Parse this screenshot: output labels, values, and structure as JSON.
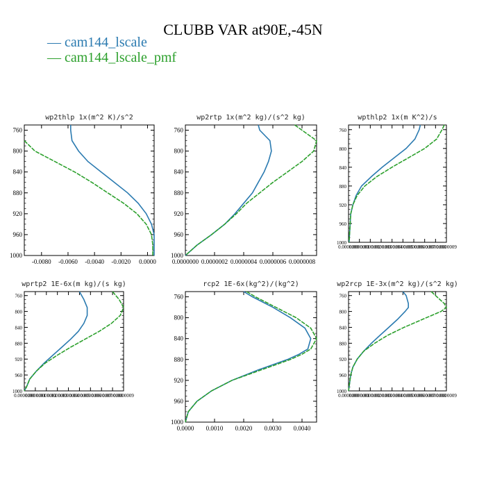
{
  "title": "CLUBB VAR at90E,-45N",
  "legend": [
    {
      "label": "cam144_lscale",
      "color": "#2a7ab0"
    },
    {
      "label": "cam144_lscale_pmf",
      "color": "#2ca02c"
    }
  ],
  "chart_data": [
    {
      "type": "line",
      "title": "wp2thlp  1x(m^2 K)/s^2",
      "xlim": [
        -0.0093,
        0.0005
      ],
      "ylim": [
        1000,
        750
      ],
      "yticks": [
        760,
        800,
        840,
        880,
        920,
        960,
        1000
      ],
      "xticks": [
        -0.008,
        -0.006,
        -0.004,
        -0.002,
        0.0
      ],
      "xtick_labels": [
        "-0.0080",
        "-0.0060",
        "-0.0040",
        "-0.0020",
        "0.0000"
      ],
      "series": [
        {
          "y": [
            750,
            760,
            780,
            800,
            820,
            840,
            860,
            880,
            900,
            920,
            940,
            960,
            980,
            1000
          ],
          "x": [
            -0.0058,
            -0.0058,
            -0.0057,
            -0.0052,
            -0.0045,
            -0.0035,
            -0.0025,
            -0.0015,
            -0.0007,
            -0.0001,
            0.0003,
            0.0005,
            0.0005,
            0.0005
          ]
        },
        {
          "y": [
            780,
            800,
            820,
            840,
            860,
            880,
            900,
            920,
            940,
            960,
            980,
            1000
          ],
          "x": [
            -0.0093,
            -0.0085,
            -0.007,
            -0.0055,
            -0.0042,
            -0.003,
            -0.0018,
            -0.0008,
            -0.0001,
            0.0003,
            0.0004,
            0.0004
          ]
        }
      ]
    },
    {
      "type": "line",
      "title": "wp2rtp  1x(m^2 kg)/(s^2 kg)",
      "xlim": [
        0,
        9e-07
      ],
      "ylim": [
        1000,
        750
      ],
      "yticks": [
        760,
        800,
        840,
        880,
        920,
        960,
        1000
      ],
      "xticks": [
        0,
        2e-07,
        4e-07,
        6e-07,
        8e-07
      ],
      "xtick_labels": [
        "0.0000000",
        "0.0000002",
        "0.0000004",
        "0.0000006",
        "0.0000008"
      ],
      "series": [
        {
          "y": [
            750,
            760,
            780,
            800,
            820,
            840,
            860,
            880,
            900,
            920,
            940,
            960,
            980,
            1000
          ],
          "x": [
            5e-07,
            5.1e-07,
            5.8e-07,
            5.9e-07,
            5.7e-07,
            5.4e-07,
            5e-07,
            4.6e-07,
            4e-07,
            3.4e-07,
            2.7e-07,
            1.8e-07,
            8e-08,
            0.0
          ]
        },
        {
          "y": [
            750,
            760,
            780,
            800,
            820,
            840,
            860,
            880,
            900,
            920,
            940,
            960,
            980,
            1000
          ],
          "x": [
            7.5e-07,
            8e-07,
            9e-07,
            8.8e-07,
            8e-07,
            7e-07,
            6e-07,
            5.1e-07,
            4.2e-07,
            3.5e-07,
            2.7e-07,
            1.8e-07,
            8e-08,
            0.0
          ]
        }
      ]
    },
    {
      "type": "line",
      "title": "wpthlp2  1x(m K^2)/s",
      "xlim": [
        0,
        9e-07
      ],
      "ylim": [
        1000,
        750
      ],
      "yticks": [
        760,
        800,
        840,
        880,
        920,
        960,
        1000
      ],
      "xticks": [
        0,
        1e-07,
        2e-07,
        3e-07,
        4e-07,
        5e-07,
        6e-07,
        7e-07,
        8e-07,
        9e-07
      ],
      "xtick_labels": [
        "0.0000000",
        "0.0000001",
        "0.0000002",
        "0.0000003",
        "0.0000004",
        "0.0000005",
        "0.0000006",
        "0.0000007",
        "0.0000008",
        "0.0000009"
      ],
      "series": [
        {
          "y": [
            750,
            760,
            780,
            800,
            820,
            840,
            860,
            880,
            900,
            920,
            940,
            960,
            980,
            1000
          ],
          "x": [
            6.6e-07,
            6.5e-07,
            6.1e-07,
            5.3e-07,
            4.2e-07,
            3.1e-07,
            2.1e-07,
            1.2e-07,
            7e-08,
            4e-08,
            2e-08,
            1.5e-08,
            1e-08,
            5e-09
          ]
        },
        {
          "y": [
            750,
            760,
            780,
            800,
            820,
            840,
            860,
            880,
            900,
            920,
            940,
            960,
            980,
            1000
          ],
          "x": [
            8.8e-07,
            8.6e-07,
            8.1e-07,
            7e-07,
            5.5e-07,
            4e-07,
            2.6e-07,
            1.5e-07,
            8e-08,
            4e-08,
            2e-08,
            1.5e-08,
            1e-08,
            5e-09
          ]
        }
      ]
    },
    {
      "type": "line",
      "title": "wprtp2  1E-6x(m kg)/(s kg)",
      "xlim": [
        0,
        9e-07
      ],
      "ylim": [
        1000,
        750
      ],
      "yticks": [
        760,
        800,
        840,
        880,
        920,
        960,
        1000
      ],
      "xticks": [
        0,
        1e-07,
        2e-07,
        3e-07,
        4e-07,
        5e-07,
        6e-07,
        7e-07,
        8e-07,
        9e-07
      ],
      "xtick_labels": [
        "0.0000000",
        "0.0000001",
        "0.0000002",
        "0.0000003",
        "0.0000004",
        "0.0000005",
        "0.0000006",
        "0.0000007",
        "0.0000008",
        "0.0000009"
      ],
      "series": [
        {
          "y": [
            750,
            770,
            790,
            810,
            830,
            850,
            870,
            890,
            910,
            930,
            950,
            970,
            990,
            1000
          ],
          "x": [
            5e-07,
            5.4e-07,
            5.7e-07,
            5.7e-07,
            5.4e-07,
            4.9e-07,
            4.2e-07,
            3.4e-07,
            2.6e-07,
            1.8e-07,
            1.1e-07,
            5e-08,
            2e-08,
            0.0
          ]
        },
        {
          "y": [
            750,
            770,
            790,
            810,
            830,
            850,
            870,
            890,
            910,
            930,
            950,
            970,
            990,
            1000
          ],
          "x": [
            8e-07,
            8.6e-07,
            9e-07,
            8.7e-07,
            7.9e-07,
            6.8e-07,
            5.5e-07,
            4.2e-07,
            3e-07,
            1.9e-07,
            1.1e-07,
            5e-08,
            2e-08,
            0.0
          ]
        }
      ]
    },
    {
      "type": "line",
      "title": "rcp2  1E-6x(kg^2)/(kg^2)",
      "xlim": [
        0,
        0.0045
      ],
      "ylim": [
        1000,
        750
      ],
      "yticks": [
        760,
        800,
        840,
        880,
        920,
        960,
        1000
      ],
      "xticks": [
        0,
        0.001,
        0.002,
        0.003,
        0.004
      ],
      "xtick_labels": [
        "0.0000",
        "0.0010",
        "0.0020",
        "0.0030",
        "0.0040"
      ],
      "series": [
        {
          "y": [
            750,
            760,
            780,
            800,
            820,
            840,
            860,
            870,
            880,
            900,
            920,
            940,
            960,
            980,
            1000
          ],
          "x": [
            0.002,
            0.0023,
            0.003,
            0.0036,
            0.0041,
            0.0043,
            0.0042,
            0.0039,
            0.0035,
            0.0025,
            0.0016,
            0.0009,
            0.0004,
            0.0001,
            0.0
          ]
        },
        {
          "y": [
            750,
            760,
            780,
            800,
            820,
            840,
            860,
            870,
            880,
            900,
            920,
            940,
            960,
            980,
            1000
          ],
          "x": [
            0.0021,
            0.0024,
            0.0031,
            0.0038,
            0.0043,
            0.0045,
            0.0043,
            0.004,
            0.0036,
            0.0026,
            0.0016,
            0.0009,
            0.0004,
            0.0001,
            0.0
          ]
        }
      ]
    },
    {
      "type": "line",
      "title": "wp2rcp  1E-3x(m^2 kg)/(s^2 kg)",
      "xlim": [
        0,
        9e-07
      ],
      "ylim": [
        1000,
        750
      ],
      "yticks": [
        760,
        800,
        840,
        880,
        920,
        960,
        1000
      ],
      "xticks": [
        0,
        1e-07,
        2e-07,
        3e-07,
        4e-07,
        5e-07,
        6e-07,
        7e-07,
        8e-07,
        9e-07
      ],
      "xtick_labels": [
        "0.0000000",
        "0.0000001",
        "0.0000002",
        "0.0000003",
        "0.0000004",
        "0.0000005",
        "0.0000006",
        "0.0000007",
        "0.0000008",
        "0.0000009"
      ],
      "series": [
        {
          "y": [
            750,
            760,
            780,
            790,
            800,
            820,
            840,
            860,
            880,
            900,
            920,
            940,
            960,
            980,
            1000
          ],
          "x": [
            5e-07,
            5.3e-07,
            5.5e-07,
            5.5e-07,
            5.2e-07,
            4.5e-07,
            3.7e-07,
            2.9e-07,
            2.1e-07,
            1.4e-07,
            8e-08,
            4e-08,
            2e-08,
            1e-08,
            0.0
          ]
        },
        {
          "y": [
            750,
            760,
            780,
            790,
            800,
            820,
            840,
            860,
            880,
            900,
            920,
            940,
            960,
            980,
            1000
          ],
          "x": [
            7.6e-07,
            8e-07,
            8.8e-07,
            9e-07,
            8.5e-07,
            6.8e-07,
            5.1e-07,
            3.6e-07,
            2.4e-07,
            1.4e-07,
            8e-08,
            4e-08,
            2e-08,
            1e-08,
            0.0
          ]
        }
      ]
    }
  ]
}
